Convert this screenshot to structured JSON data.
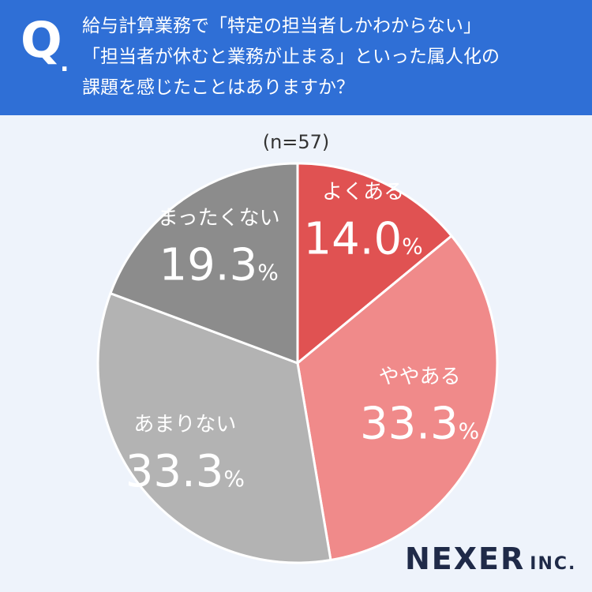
{
  "header": {
    "q_mark": "Q",
    "question_lines": [
      "給与計算業務で「特定の担当者しかわからない」",
      "「担当者が休むと業務が止まる」といった属人化の",
      "課題を感じたことはありますか？"
    ]
  },
  "sample_size": "(n=57)",
  "chart_data": {
    "type": "pie",
    "categories": [
      "よくある",
      "ややある",
      "あまりない",
      "まったくない"
    ],
    "values": [
      14.0,
      33.3,
      33.3,
      19.3
    ],
    "value_labels": [
      "14.0",
      "33.3",
      "33.3",
      "19.3"
    ],
    "unit": "%",
    "colors": [
      "#e05252",
      "#f08a8a",
      "#b3b3b3",
      "#8c8c8c"
    ],
    "title": "",
    "legend": "none",
    "direction": "clockwise-from-top"
  },
  "logo": {
    "main": "NEXER",
    "sub": "INC."
  }
}
